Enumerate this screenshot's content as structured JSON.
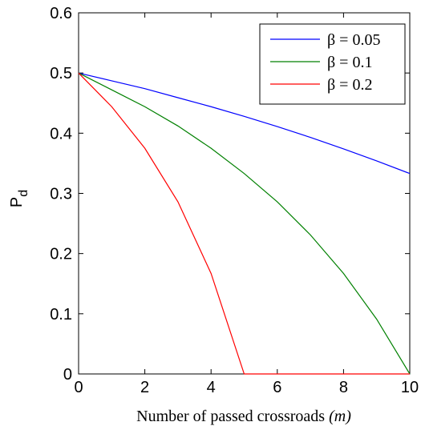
{
  "chart_data": {
    "type": "line",
    "xlabel_prefix": "Number of passed crossroads ",
    "xlabel_var": "(m)",
    "ylabel_main": "P",
    "ylabel_sub": "d",
    "xlim": [
      0,
      10
    ],
    "ylim": [
      0,
      0.6
    ],
    "xticks": [
      "0",
      "2",
      "4",
      "6",
      "8",
      "10"
    ],
    "yticks": [
      "0",
      "0.1",
      "0.2",
      "0.3",
      "0.4",
      "0.5",
      "0.6"
    ],
    "grid": false,
    "legend_position": "top-right",
    "x": [
      0,
      1,
      2,
      3,
      4,
      5,
      6,
      7,
      8,
      9,
      10
    ],
    "series": [
      {
        "name": "β = 0.05",
        "color": "#0000ff",
        "values": [
          0.5,
          0.487,
          0.474,
          0.459,
          0.444,
          0.428,
          0.411,
          0.393,
          0.374,
          0.354,
          0.333
        ]
      },
      {
        "name": "β = 0.1",
        "color": "#008000",
        "values": [
          0.5,
          0.472,
          0.444,
          0.412,
          0.375,
          0.333,
          0.286,
          0.231,
          0.167,
          0.091,
          0.0
        ]
      },
      {
        "name": "β = 0.2",
        "color": "#ff0000",
        "values": [
          0.5,
          0.444,
          0.375,
          0.286,
          0.167,
          0.0,
          0.0,
          0.0,
          0.0,
          0.0,
          0.0
        ]
      }
    ]
  }
}
